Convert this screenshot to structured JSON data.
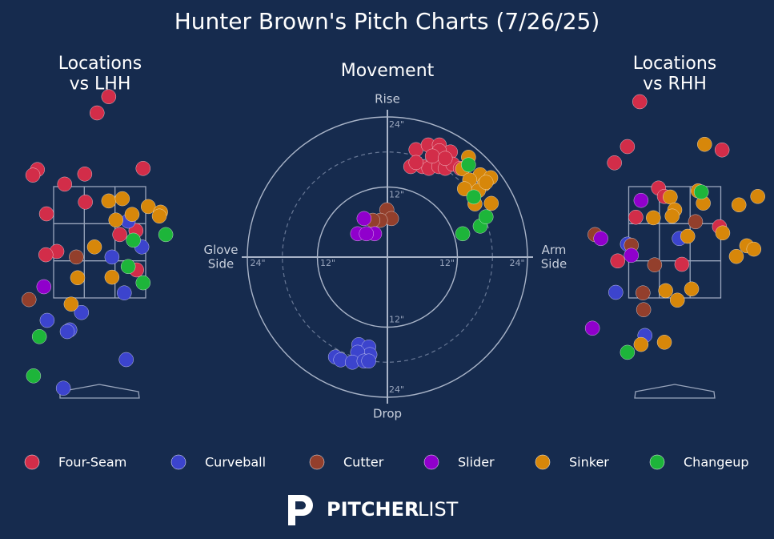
{
  "title": "Hunter Brown's Pitch Charts (7/26/25)",
  "logo": {
    "bold": "PITCHER",
    "light": "LIST"
  },
  "chart_data": [
    {
      "type": "scatter",
      "title": "Locations\nvs LHH",
      "xlim": [
        -1.3,
        1.3
      ],
      "ylim": [
        -0.3,
        5.3
      ],
      "series": [
        {
          "name": "Four-Seam",
          "color": "#d22d49",
          "x": [
            0.14,
            -0.04,
            -0.96,
            -1.03,
            -0.23,
            0.67,
            -0.54,
            -0.22,
            -0.82,
            0.56,
            0.31,
            -0.66,
            -0.83,
            0.57
          ],
          "values": [
            5.09,
            4.8,
            3.79,
            3.69,
            3.71,
            3.81,
            3.53,
            3.21,
            3.0,
            2.7,
            2.63,
            2.33,
            2.27,
            2.0
          ]
        },
        {
          "name": "Curveball",
          "color": "#3c44cd",
          "x": [
            0.44,
            0.65,
            0.19,
            0.38,
            -0.28,
            -0.81,
            -0.46,
            -0.5,
            0.41,
            -0.56
          ],
          "values": [
            2.87,
            2.41,
            2.23,
            1.59,
            1.24,
            1.1,
            0.93,
            0.9,
            0.4,
            -0.11
          ]
        },
        {
          "name": "Cutter",
          "color": "#933f2c",
          "x": [
            -0.36,
            -1.09
          ],
          "values": [
            2.23,
            1.47
          ]
        },
        {
          "name": "Slider",
          "color": "#9000cc",
          "x": [
            -0.86
          ],
          "values": [
            1.7
          ]
        },
        {
          "name": "Sinker",
          "color": "#d7870a",
          "x": [
            0.14,
            0.35,
            0.25,
            0.5,
            0.75,
            0.94,
            0.92,
            -0.08,
            -0.34,
            0.19,
            -0.44
          ],
          "values": [
            3.23,
            3.27,
            2.89,
            2.99,
            3.13,
            3.03,
            2.96,
            2.41,
            1.86,
            1.87,
            1.39
          ]
        },
        {
          "name": "Changeup",
          "color": "#1db53a",
          "x": [
            1.02,
            0.52,
            0.44,
            0.67,
            -0.93,
            -1.02
          ],
          "values": [
            2.63,
            2.53,
            2.06,
            1.77,
            0.81,
            0.11
          ]
        }
      ]
    },
    {
      "type": "scatter",
      "title": "Movement",
      "grid": "polar",
      "xlim": [
        -24,
        24
      ],
      "ylim": [
        -24,
        24
      ],
      "axis_labels": {
        "top": "Rise",
        "bottom": "Drop",
        "left": "Glove\nSide",
        "right": "Arm\nSide"
      },
      "xticks": [
        {
          "value": -24,
          "label": "24\""
        },
        {
          "value": -12,
          "label": "12\""
        },
        {
          "value": 12,
          "label": "12\""
        },
        {
          "value": 24,
          "label": "24\""
        }
      ],
      "yticks": [
        {
          "value": 24,
          "label": "24\""
        },
        {
          "value": 12,
          "label": "12\""
        },
        {
          "value": -12,
          "label": "12\""
        },
        {
          "value": -24,
          "label": "24\""
        }
      ],
      "series": [
        {
          "name": "Four-Seam",
          "color": "#d22d49",
          "x": [
            4.9,
            7.0,
            8.9,
            10.8,
            4.0,
            6.0,
            7.1,
            8.8,
            9.9,
            11.2,
            12.5,
            4.9,
            8.9,
            7.7,
            9.9
          ],
          "values": [
            18.4,
            19.2,
            19.2,
            18.0,
            15.5,
            15.5,
            15.2,
            15.5,
            15.2,
            15.9,
            15.2,
            16.2,
            18.2,
            17.3,
            16.9
          ]
        },
        {
          "name": "Curveball",
          "color": "#3c44cd",
          "x": [
            -4.9,
            -3.2,
            -3.0,
            -5.1,
            -8.9,
            -8.0,
            -6.0,
            -4.0,
            -3.2
          ],
          "values": [
            -15.0,
            -15.4,
            -16.7,
            -16.3,
            -17.1,
            -17.6,
            -18.0,
            -17.8,
            -17.8
          ]
        },
        {
          "name": "Cutter",
          "color": "#933f2c",
          "x": [
            -0.1,
            0.7,
            -1.2,
            -2.5
          ],
          "values": [
            8.1,
            6.6,
            6.3,
            6.3
          ]
        },
        {
          "name": "Slider",
          "color": "#9000cc",
          "x": [
            -4.0,
            -5.1,
            -2.2,
            -3.6
          ],
          "values": [
            6.6,
            4.0,
            4.0,
            4.0
          ]
        },
        {
          "name": "Sinker",
          "color": "#d7870a",
          "x": [
            13.9,
            12.9,
            15.9,
            17.7,
            14.1,
            16.6,
            15.6,
            13.2,
            15.0,
            17.8,
            16.9
          ],
          "values": [
            17.1,
            15.1,
            14.1,
            13.6,
            13.2,
            12.5,
            11.4,
            11.7,
            9.1,
            9.2,
            12.8
          ]
        },
        {
          "name": "Changeup",
          "color": "#1db53a",
          "x": [
            13.9,
            14.8,
            15.9,
            16.9,
            12.9
          ],
          "values": [
            15.8,
            10.3,
            5.3,
            6.9,
            4.0
          ]
        }
      ]
    },
    {
      "type": "scatter",
      "title": "Locations\nvs RHH",
      "xlim": [
        -1.3,
        1.3
      ],
      "ylim": [
        -0.3,
        5.3
      ],
      "series": [
        {
          "name": "Four-Seam",
          "color": "#d22d49",
          "x": [
            -0.54,
            -0.73,
            -0.93,
            0.73,
            -0.25,
            -0.16,
            -0.6,
            0.69,
            -0.88,
            0.11
          ],
          "values": [
            5.0,
            4.2,
            3.91,
            4.14,
            3.46,
            3.31,
            2.94,
            2.77,
            2.16,
            2.1
          ]
        },
        {
          "name": "Curveball",
          "color": "#3c44cd",
          "x": [
            -0.73,
            0.07,
            -0.91,
            -0.46
          ],
          "values": [
            2.46,
            2.56,
            1.6,
            0.83
          ]
        },
        {
          "name": "Cutter",
          "color": "#933f2c",
          "x": [
            -1.23,
            -0.67,
            0.32,
            -0.31,
            -0.49,
            -0.48
          ],
          "values": [
            2.63,
            2.44,
            2.86,
            2.09,
            1.59,
            1.29
          ]
        },
        {
          "name": "Slider",
          "color": "#9000cc",
          "x": [
            -0.52,
            -1.14,
            -0.67,
            -1.27
          ],
          "values": [
            3.24,
            2.56,
            2.26,
            0.96
          ]
        },
        {
          "name": "Sinker",
          "color": "#d7870a",
          "x": [
            0.46,
            0.36,
            -0.07,
            0.44,
            0.0,
            -0.04,
            -0.33,
            0.99,
            1.28,
            0.2,
            0.74,
            1.11,
            1.22,
            0.95,
            -0.14,
            0.26,
            0.04,
            -0.52,
            -0.16
          ],
          "values": [
            4.24,
            3.41,
            3.3,
            3.19,
            3.07,
            2.96,
            2.93,
            3.16,
            3.31,
            2.6,
            2.66,
            2.43,
            2.37,
            2.24,
            1.63,
            1.66,
            1.46,
            0.67,
            0.71
          ]
        },
        {
          "name": "Changeup",
          "color": "#1db53a",
          "x": [
            0.41,
            -0.73
          ],
          "values": [
            3.39,
            0.53
          ]
        }
      ]
    }
  ]
}
